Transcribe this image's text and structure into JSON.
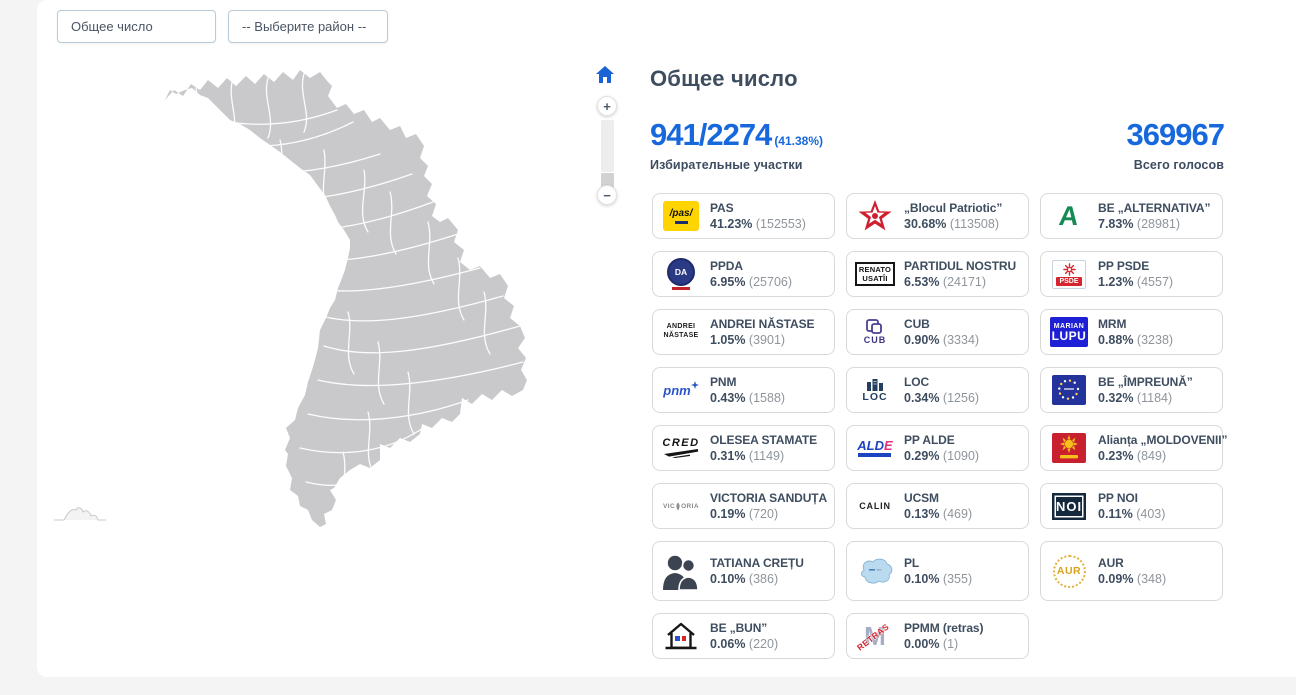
{
  "colors": {
    "accent": "#1767dd",
    "navy": "#3e4d5f",
    "muted_gray": "#8f959b",
    "map_gray": "#c9c9cb"
  },
  "filters": {
    "total_select_value": "Общее число",
    "district_select_value": "-- Выберите район --"
  },
  "map_controls": {
    "home_icon": "home-icon",
    "zoom_in_label": "+",
    "zoom_out_label": "−"
  },
  "header": {
    "title": "Общее число",
    "stations_value": "941/2274",
    "stations_percent": "(41.38%)",
    "stations_label": "Избирательные участки",
    "total_votes_value": "369967",
    "total_votes_label": "Всего голосов"
  },
  "parties": [
    {
      "name": "PAS",
      "percent": "41.23%",
      "votes": "(152553)",
      "logo": {
        "kind": "pas",
        "text": "/pas/"
      }
    },
    {
      "name": "„Blocul Patriotic”",
      "percent": "30.68%",
      "votes": "(113508)",
      "logo": {
        "kind": "star"
      }
    },
    {
      "name": "BE „ALTERNATIVA”",
      "percent": "7.83%",
      "votes": "(28981)",
      "logo": {
        "kind": "letterA",
        "text": "A"
      }
    },
    {
      "name": "PPDA",
      "percent": "6.95%",
      "votes": "(25706)",
      "logo": {
        "kind": "da",
        "text": "DA"
      }
    },
    {
      "name": "PARTIDUL NOSTRU",
      "percent": "6.53%",
      "votes": "(24171)",
      "logo": {
        "kind": "renato",
        "lines": [
          "RENATO",
          "USATÎI"
        ]
      }
    },
    {
      "name": "PP PSDE",
      "percent": "1.23%",
      "votes": "(4557)",
      "logo": {
        "kind": "psde",
        "text": "PSDE"
      }
    },
    {
      "name": "ANDREI NĂSTASE",
      "percent": "1.05%",
      "votes": "(3901)",
      "logo": {
        "kind": "textlines",
        "lines": [
          "ANDREI",
          "NĂSTASE"
        ]
      }
    },
    {
      "name": "CUB",
      "percent": "0.90%",
      "votes": "(3334)",
      "logo": {
        "kind": "cub",
        "text": "CUB"
      }
    },
    {
      "name": "MRM",
      "percent": "0.88%",
      "votes": "(3238)",
      "logo": {
        "kind": "mrm",
        "lines": [
          "MARIAN",
          "LUPU"
        ]
      }
    },
    {
      "name": "PNM",
      "percent": "0.43%",
      "votes": "(1588)",
      "logo": {
        "kind": "pnm",
        "text": "pnm"
      }
    },
    {
      "name": "LOC",
      "percent": "0.34%",
      "votes": "(1256)",
      "logo": {
        "kind": "loc",
        "text": "LOC"
      }
    },
    {
      "name": "BE „ÎMPREUNĂ”",
      "percent": "0.32%",
      "votes": "(1184)",
      "logo": {
        "kind": "eu"
      }
    },
    {
      "name": "OLESEA STAMATE",
      "percent": "0.31%",
      "votes": "(1149)",
      "logo": {
        "kind": "cred",
        "text": "CRED"
      }
    },
    {
      "name": "PP ALDE",
      "percent": "0.29%",
      "votes": "(1090)",
      "logo": {
        "kind": "alde",
        "text": "ALDE"
      }
    },
    {
      "name": "Alianța „MOLDOVENII”",
      "percent": "0.23%",
      "votes": "(849)",
      "logo": {
        "kind": "sun"
      }
    },
    {
      "name": "VICTORIA SANDUȚA",
      "percent": "0.19%",
      "votes": "(720)",
      "logo": {
        "kind": "victoria",
        "text": "VICTORIA"
      }
    },
    {
      "name": "UCSM",
      "percent": "0.13%",
      "votes": "(469)",
      "logo": {
        "kind": "calin",
        "text": "CALIN"
      }
    },
    {
      "name": "PP NOI",
      "percent": "0.11%",
      "votes": "(403)",
      "logo": {
        "kind": "noi",
        "text": "NOI"
      }
    },
    {
      "name": "TATIANA CREȚU",
      "percent": "0.10%",
      "votes": "(386)",
      "tall": true,
      "logo": {
        "kind": "people"
      }
    },
    {
      "name": "PL",
      "percent": "0.10%",
      "votes": "(355)",
      "tall": true,
      "logo": {
        "kind": "blob"
      }
    },
    {
      "name": "AUR",
      "percent": "0.09%",
      "votes": "(348)",
      "tall": true,
      "logo": {
        "kind": "aur",
        "text": "AUR"
      }
    },
    {
      "name": "BE „BUN”",
      "percent": "0.06%",
      "votes": "(220)",
      "logo": {
        "kind": "house"
      }
    },
    {
      "name": "PPMM (retras)",
      "percent": "0.00%",
      "votes": "(1)",
      "logo": {
        "kind": "retras",
        "text": "M"
      }
    }
  ]
}
